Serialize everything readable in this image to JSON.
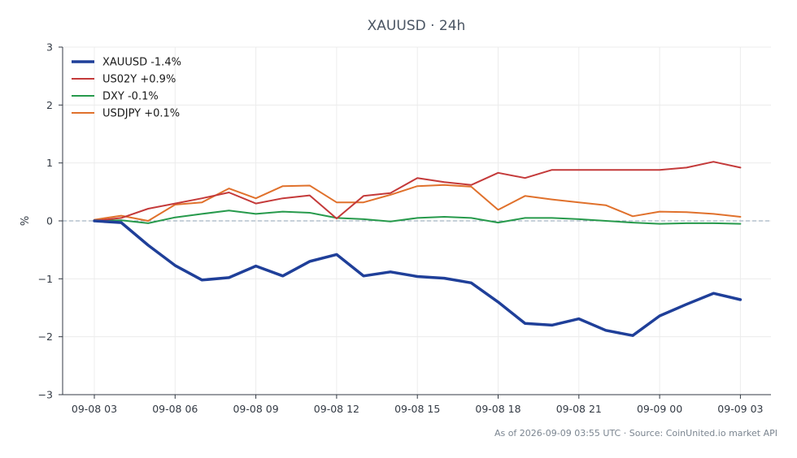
{
  "chart_data": {
    "type": "line",
    "title": "XAUUSD · 24h",
    "xlabel": "",
    "ylabel": "%",
    "ylim": [
      -3,
      3
    ],
    "yticks": [
      -3,
      -2,
      -1,
      0,
      1,
      2,
      3
    ],
    "ytick_labels": [
      "−3",
      "−2",
      "−1",
      "0",
      "1",
      "2",
      "3"
    ],
    "x_tick_labels": [
      "09-08 03",
      "09-08 06",
      "09-08 09",
      "09-08 12",
      "09-08 15",
      "09-08 18",
      "09-08 21",
      "09-09 00",
      "09-09 03"
    ],
    "x": [
      "09-08 03",
      "09-08 04",
      "09-08 05",
      "09-08 06",
      "09-08 07",
      "09-08 08",
      "09-08 09",
      "09-08 10",
      "09-08 11",
      "09-08 12",
      "09-08 13",
      "09-08 14",
      "09-08 15",
      "09-08 16",
      "09-08 17",
      "09-08 18",
      "09-08 19",
      "09-08 20",
      "09-08 21",
      "09-08 22",
      "09-08 23",
      "09-09 00",
      "09-09 01",
      "09-09 02",
      "09-09 03"
    ],
    "grid": true,
    "legend_position": "top-left",
    "zero_line": true,
    "series": [
      {
        "name": "XAUUSD -1.4%",
        "color": "#1f3f99",
        "width": 3.5,
        "values": [
          0.0,
          -0.03,
          -0.42,
          -0.77,
          -1.02,
          -0.98,
          -0.78,
          -0.95,
          -0.7,
          -0.58,
          -0.95,
          -0.88,
          -0.96,
          -0.99,
          -1.07,
          -1.4,
          -1.77,
          -1.8,
          -1.69,
          -1.89,
          -1.98,
          -1.64,
          -1.44,
          -1.25,
          -1.36
        ]
      },
      {
        "name": "US02Y +0.9%",
        "color": "#c43a3a",
        "width": 2,
        "values": [
          0.0,
          0.05,
          0.21,
          0.3,
          0.39,
          0.49,
          0.3,
          0.39,
          0.44,
          0.04,
          0.43,
          0.48,
          0.74,
          0.67,
          0.62,
          0.83,
          0.74,
          0.88,
          0.88,
          0.88,
          0.88,
          0.88,
          0.92,
          1.02,
          0.92
        ]
      },
      {
        "name": "DXY -0.1%",
        "color": "#279a4c",
        "width": 2,
        "values": [
          0.0,
          0.01,
          -0.04,
          0.06,
          0.12,
          0.18,
          0.12,
          0.16,
          0.14,
          0.05,
          0.03,
          -0.01,
          0.05,
          0.07,
          0.05,
          -0.03,
          0.05,
          0.05,
          0.03,
          0.0,
          -0.03,
          -0.05,
          -0.04,
          -0.04,
          -0.05
        ]
      },
      {
        "name": "USDJPY +0.1%",
        "color": "#e0712c",
        "width": 2,
        "values": [
          0.02,
          0.09,
          0.0,
          0.28,
          0.32,
          0.56,
          0.39,
          0.6,
          0.61,
          0.32,
          0.32,
          0.45,
          0.6,
          0.62,
          0.59,
          0.19,
          0.43,
          0.37,
          0.32,
          0.27,
          0.08,
          0.16,
          0.15,
          0.12,
          0.07
        ]
      }
    ],
    "footer": "As of 2026-09-09 03:55 UTC · Source: CoinUnited.io market API"
  }
}
